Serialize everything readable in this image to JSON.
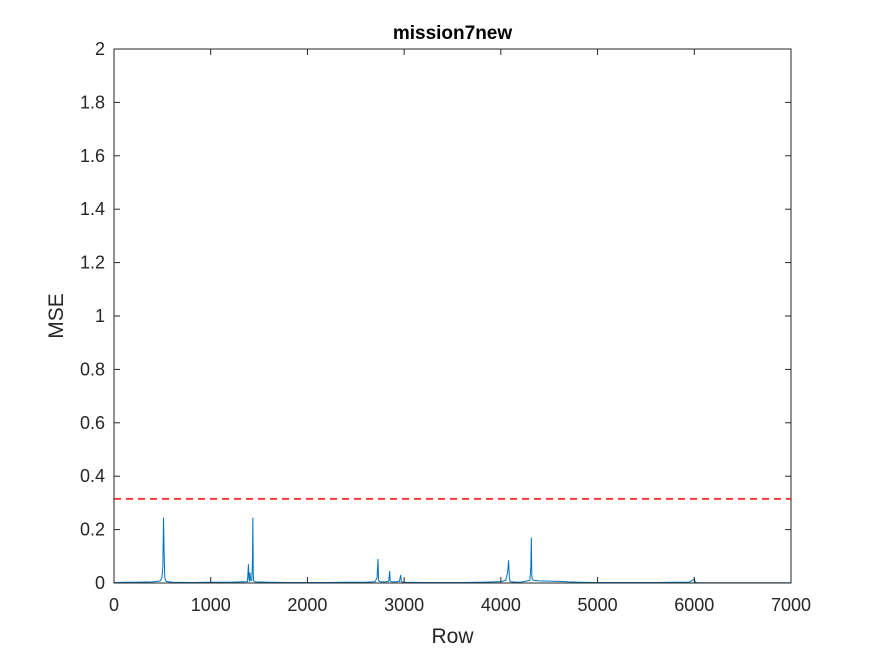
{
  "chart_data": {
    "type": "line",
    "title": "mission7new",
    "xlabel": "Row",
    "ylabel": "MSE",
    "xlim": [
      0,
      7000
    ],
    "ylim": [
      0,
      2
    ],
    "xticks": [
      0,
      1000,
      2000,
      3000,
      4000,
      5000,
      6000,
      7000
    ],
    "yticks": [
      0,
      0.2,
      0.4,
      0.6,
      0.8,
      1,
      1.2,
      1.4,
      1.6,
      1.8,
      2
    ],
    "xtick_labels": [
      "0",
      "1000",
      "2000",
      "3000",
      "4000",
      "5000",
      "6000",
      "7000"
    ],
    "ytick_labels": [
      "0",
      "0.2",
      "0.4",
      "0.6",
      "0.8",
      "1",
      "1.2",
      "1.4",
      "1.6",
      "1.8",
      "2"
    ],
    "grid": false,
    "series": [
      {
        "color": "#0072BD",
        "x": [
          0,
          200,
          400,
          480,
          495,
          505,
          512,
          518,
          525,
          540,
          600,
          800,
          1000,
          1200,
          1380,
          1390,
          1395,
          1400,
          1405,
          1415,
          1425,
          1432,
          1436,
          1440,
          1445,
          1460,
          1600,
          1800,
          2000,
          2200,
          2400,
          2600,
          2700,
          2720,
          2730,
          2735,
          2745,
          2760,
          2800,
          2840,
          2850,
          2855,
          2865,
          2900,
          2950,
          2965,
          2970,
          2980,
          3000,
          3200,
          3400,
          3600,
          3800,
          4000,
          4050,
          4070,
          4080,
          4088,
          4095,
          4110,
          4200,
          4300,
          4310,
          4315,
          4320,
          4325,
          4330,
          4340,
          4400,
          4500,
          4600,
          4700,
          4800,
          5000,
          5200,
          5400,
          5600,
          5800,
          5950,
          6000,
          6010,
          6020,
          6050,
          6200,
          6500,
          6800,
          7000
        ],
        "y": [
          0.002,
          0.003,
          0.004,
          0.008,
          0.02,
          0.06,
          0.245,
          0.12,
          0.02,
          0.006,
          0.003,
          0.002,
          0.003,
          0.003,
          0.005,
          0.07,
          0.02,
          0.005,
          0.04,
          0.01,
          0.01,
          0.085,
          0.245,
          0.03,
          0.008,
          0.004,
          0.003,
          0.002,
          0.002,
          0.002,
          0.003,
          0.003,
          0.005,
          0.02,
          0.09,
          0.01,
          0.006,
          0.004,
          0.004,
          0.006,
          0.045,
          0.01,
          0.005,
          0.004,
          0.006,
          0.03,
          0.005,
          0.004,
          0.003,
          0.002,
          0.002,
          0.002,
          0.003,
          0.005,
          0.01,
          0.04,
          0.085,
          0.02,
          0.006,
          0.004,
          0.003,
          0.01,
          0.06,
          0.17,
          0.03,
          0.015,
          0.012,
          0.01,
          0.008,
          0.007,
          0.006,
          0.004,
          0.003,
          0.002,
          0.002,
          0.002,
          0.002,
          0.003,
          0.003,
          0.015,
          0.004,
          0.002,
          0.001,
          0.001,
          0.001,
          0.001,
          0.001
        ]
      }
    ],
    "threshold": {
      "value": 0.315,
      "color": "#FF3B3B",
      "style": "dashed"
    }
  }
}
